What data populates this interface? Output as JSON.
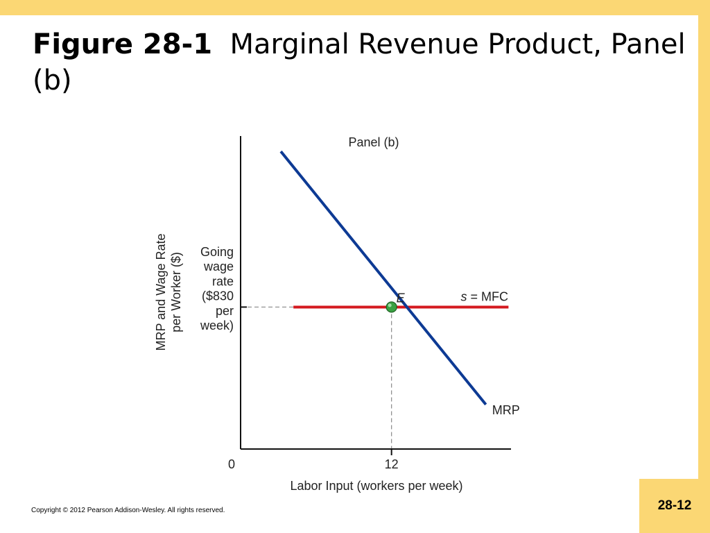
{
  "slide": {
    "title_bold": "Figure 28-1",
    "title_rest": "Marginal Revenue Product, Panel (b)",
    "copyright": "Copyright © 2012 Pearson Addison-Wesley. All rights reserved.",
    "page_number": "28-12"
  },
  "colors": {
    "accent": "#fbd774",
    "mrp_line": "#0d3a94",
    "supply_line": "#d4191f",
    "equilibrium_point": "#3aa142",
    "axis": "#111111",
    "dashed_guide": "#888888"
  },
  "chart_data": {
    "type": "line",
    "panel_title": "Panel (b)",
    "xlabel": "Labor Input (workers per week)",
    "ylabel": [
      "MRP and Wage Rate",
      "per Worker ($)"
    ],
    "x_tick_labels": [
      "0",
      "12"
    ],
    "xlim": [
      0,
      21.5
    ],
    "ylim": [
      0,
      1830
    ],
    "y_annotation": [
      "Going",
      "wage",
      "rate",
      "($830",
      "per",
      "week)"
    ],
    "series": [
      {
        "name": "MRP",
        "points": [
          [
            3.2,
            1740
          ],
          [
            19.5,
            260
          ]
        ]
      },
      {
        "name": "s = MFC",
        "points": [
          [
            4.2,
            830
          ],
          [
            21.3,
            830
          ]
        ]
      }
    ],
    "equilibrium": {
      "label": "E",
      "x": 12,
      "y": 830
    },
    "grid": false,
    "legend": "none; series labeled directly on lines"
  }
}
